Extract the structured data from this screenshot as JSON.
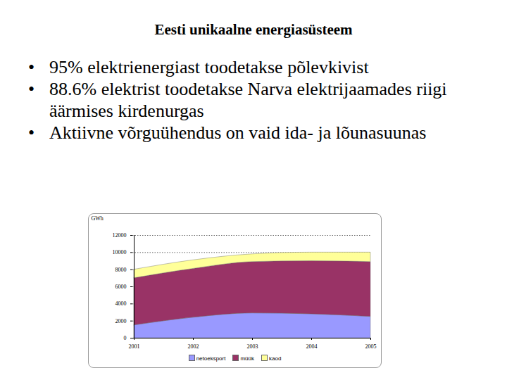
{
  "slide": {
    "title": "Eesti unikaalne energiasüsteem",
    "bullets": [
      "95% elektrienergiast toodetakse põlevkivist",
      "88.6% elektrist toodetakse Narva elektrijaamades riigi äärmises kirdenurgas",
      "Aktiivne võrguühendus on vaid ida- ja lõunasuunas"
    ]
  },
  "chart_data": {
    "type": "area",
    "stacked": true,
    "grid": true,
    "legend": "bottom",
    "y_label": "GWh",
    "categories": [
      "2001",
      "2002",
      "2003",
      "2004",
      "2005"
    ],
    "ylim": [
      0,
      12000
    ],
    "yticks": [
      0,
      2000,
      4000,
      6000,
      8000,
      10000,
      12000
    ],
    "series": [
      {
        "name": "netoeksport",
        "color": "#9999ff",
        "values": [
          1500,
          2400,
          2900,
          2800,
          2500
        ]
      },
      {
        "name": "müük",
        "color": "#993366",
        "values": [
          5500,
          5700,
          6000,
          6200,
          6400
        ]
      },
      {
        "name": "kaod",
        "color": "#ffff99",
        "values": [
          1000,
          1000,
          900,
          1000,
          1100
        ]
      }
    ]
  }
}
